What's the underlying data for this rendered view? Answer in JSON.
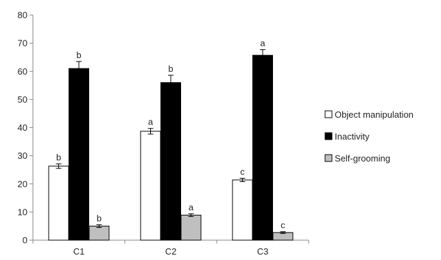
{
  "chart_data": {
    "type": "bar",
    "title": "",
    "xlabel": "",
    "ylabel": "",
    "categories": [
      "C1",
      "C2",
      "C3"
    ],
    "ylim": [
      0,
      80
    ],
    "yticks": [
      0,
      10,
      20,
      30,
      40,
      50,
      60,
      70,
      80
    ],
    "grid": false,
    "legend_position": "right",
    "series": [
      {
        "name": "Object manipulation",
        "color": "#ffffff",
        "values": [
          26.3,
          38.7,
          21.4
        ],
        "errors": [
          0.8,
          1.0,
          0.6
        ],
        "labels": [
          "b",
          "a",
          "c"
        ]
      },
      {
        "name": "Inactivity",
        "color": "#000000",
        "values": [
          61.0,
          56.0,
          65.7
        ],
        "errors": [
          2.5,
          2.6,
          2.0
        ],
        "labels": [
          "b",
          "b",
          "a"
        ]
      },
      {
        "name": "Self-grooming",
        "color": "#bfbfbf",
        "values": [
          5.0,
          8.9,
          2.7
        ],
        "errors": [
          0.5,
          0.5,
          0.3
        ],
        "labels": [
          "b",
          "a",
          "c"
        ]
      }
    ]
  }
}
